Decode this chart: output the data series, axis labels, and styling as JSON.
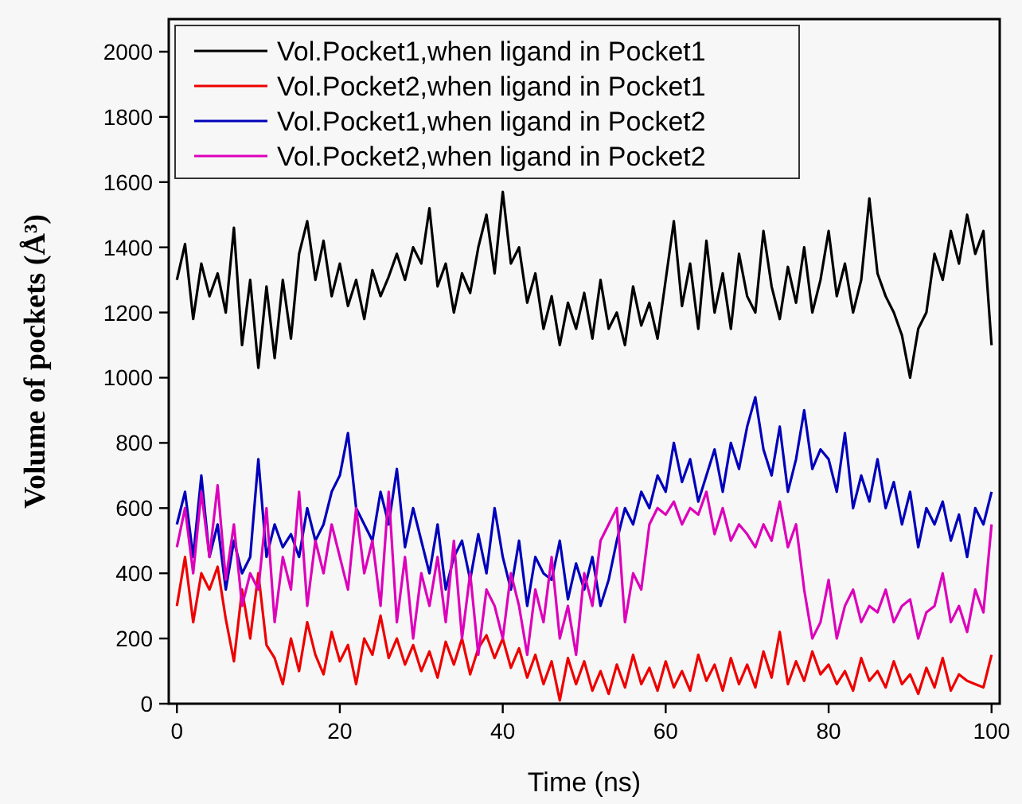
{
  "chart_data": {
    "type": "line",
    "xlabel": "Time (ns)",
    "ylabel": "Volume of pockets (Å³)",
    "x": [
      0,
      1,
      2,
      3,
      4,
      5,
      6,
      7,
      8,
      9,
      10,
      11,
      12,
      13,
      14,
      15,
      16,
      17,
      18,
      19,
      20,
      21,
      22,
      23,
      24,
      25,
      26,
      27,
      28,
      29,
      30,
      31,
      32,
      33,
      34,
      35,
      36,
      37,
      38,
      39,
      40,
      41,
      42,
      43,
      44,
      45,
      46,
      47,
      48,
      49,
      50,
      51,
      52,
      53,
      54,
      55,
      56,
      57,
      58,
      59,
      60,
      61,
      62,
      63,
      64,
      65,
      66,
      67,
      68,
      69,
      70,
      71,
      72,
      73,
      74,
      75,
      76,
      77,
      78,
      79,
      80,
      81,
      82,
      83,
      84,
      85,
      86,
      87,
      88,
      89,
      90,
      91,
      92,
      93,
      94,
      95,
      96,
      97,
      98,
      99,
      100
    ],
    "xlim": [
      -1,
      101
    ],
    "xticks": [
      0,
      20,
      40,
      60,
      80,
      100
    ],
    "ylim": [
      0,
      2100
    ],
    "yticks": [
      0,
      200,
      400,
      600,
      800,
      1000,
      1200,
      1400,
      1600,
      1800,
      2000
    ],
    "grid": false,
    "legend": "top left",
    "line_style": "solid",
    "series": [
      {
        "name": "Vol.Pocket1,when ligand in Pocket1",
        "color": "#000000",
        "values": [
          1300,
          1410,
          1180,
          1350,
          1250,
          1320,
          1200,
          1460,
          1100,
          1300,
          1030,
          1280,
          1060,
          1300,
          1120,
          1380,
          1480,
          1300,
          1420,
          1250,
          1350,
          1220,
          1300,
          1180,
          1330,
          1250,
          1310,
          1380,
          1300,
          1400,
          1350,
          1520,
          1280,
          1350,
          1200,
          1320,
          1260,
          1400,
          1500,
          1320,
          1570,
          1350,
          1400,
          1230,
          1320,
          1150,
          1250,
          1100,
          1230,
          1150,
          1260,
          1120,
          1300,
          1150,
          1200,
          1100,
          1280,
          1160,
          1230,
          1120,
          1300,
          1480,
          1220,
          1350,
          1150,
          1420,
          1200,
          1320,
          1150,
          1380,
          1250,
          1200,
          1450,
          1280,
          1180,
          1340,
          1230,
          1400,
          1200,
          1300,
          1450,
          1250,
          1350,
          1200,
          1300,
          1550,
          1320,
          1250,
          1200,
          1130,
          1000,
          1150,
          1200,
          1380,
          1300,
          1450,
          1350,
          1500,
          1380,
          1450,
          1100
        ]
      },
      {
        "name": "Vol.Pocket2,when ligand in Pocket1",
        "color": "#ee0000",
        "values": [
          300,
          450,
          250,
          400,
          350,
          420,
          260,
          130,
          350,
          200,
          400,
          180,
          140,
          60,
          200,
          100,
          250,
          150,
          90,
          220,
          130,
          180,
          60,
          200,
          150,
          270,
          140,
          200,
          120,
          180,
          100,
          160,
          80,
          190,
          120,
          200,
          90,
          170,
          210,
          140,
          200,
          110,
          170,
          80,
          150,
          60,
          130,
          10,
          140,
          60,
          130,
          40,
          100,
          30,
          120,
          50,
          150,
          60,
          110,
          40,
          130,
          50,
          100,
          40,
          150,
          70,
          120,
          40,
          140,
          60,
          120,
          50,
          160,
          80,
          220,
          60,
          130,
          70,
          160,
          90,
          120,
          60,
          100,
          40,
          140,
          70,
          100,
          50,
          130,
          60,
          90,
          30,
          110,
          50,
          140,
          40,
          90,
          70,
          60,
          50,
          150
        ]
      },
      {
        "name": "Vol.Pocket1,when ligand in Pocket2",
        "color": "#0000bb",
        "values": [
          550,
          650,
          450,
          700,
          450,
          550,
          350,
          500,
          400,
          450,
          750,
          450,
          550,
          480,
          520,
          450,
          600,
          500,
          550,
          650,
          700,
          830,
          600,
          550,
          500,
          650,
          550,
          720,
          480,
          600,
          500,
          400,
          550,
          350,
          450,
          500,
          380,
          520,
          400,
          600,
          450,
          350,
          500,
          300,
          450,
          400,
          380,
          500,
          320,
          430,
          350,
          450,
          300,
          380,
          500,
          600,
          550,
          650,
          600,
          700,
          650,
          800,
          680,
          750,
          620,
          700,
          780,
          650,
          800,
          720,
          850,
          940,
          780,
          700,
          850,
          650,
          750,
          900,
          720,
          780,
          750,
          650,
          830,
          600,
          700,
          620,
          750,
          600,
          680,
          550,
          650,
          480,
          600,
          550,
          620,
          500,
          580,
          450,
          600,
          550,
          650
        ]
      },
      {
        "name": "Vol.Pocket2,when ligand in Pocket2",
        "color": "#dd00bb",
        "values": [
          480,
          600,
          400,
          650,
          450,
          670,
          380,
          550,
          300,
          400,
          350,
          600,
          250,
          450,
          350,
          650,
          300,
          500,
          400,
          550,
          450,
          350,
          600,
          400,
          500,
          300,
          650,
          250,
          450,
          200,
          400,
          300,
          450,
          250,
          500,
          200,
          400,
          150,
          350,
          300,
          200,
          400,
          300,
          150,
          350,
          250,
          450,
          200,
          300,
          150,
          400,
          300,
          500,
          550,
          600,
          250,
          400,
          350,
          550,
          600,
          580,
          620,
          550,
          600,
          580,
          650,
          520,
          600,
          500,
          550,
          520,
          480,
          550,
          500,
          620,
          480,
          550,
          350,
          200,
          250,
          380,
          200,
          300,
          350,
          250,
          300,
          280,
          350,
          250,
          300,
          320,
          200,
          280,
          300,
          400,
          250,
          300,
          220,
          350,
          280,
          550
        ]
      }
    ]
  }
}
